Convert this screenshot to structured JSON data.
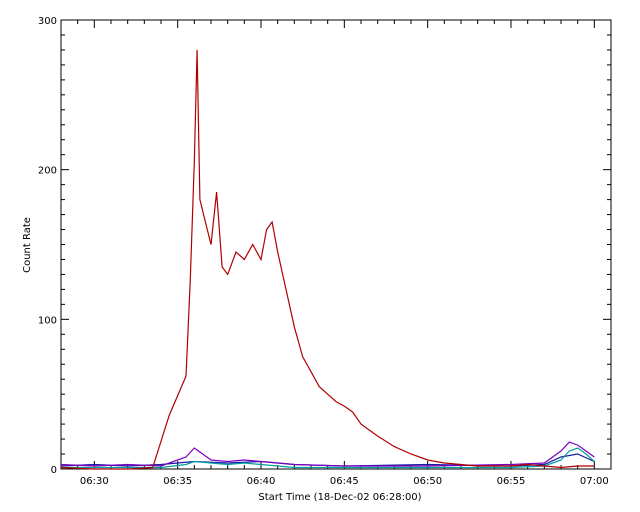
{
  "chart_data": {
    "type": "line",
    "title": "",
    "xlabel": "Start Time (18-Dec-02 06:28:00)",
    "ylabel": "Count Rate",
    "xlim": [
      "06:28",
      "07:01"
    ],
    "ylim": [
      0,
      300
    ],
    "x_ticks": [
      "06:30",
      "06:35",
      "06:40",
      "06:45",
      "06:50",
      "06:55",
      "07:00"
    ],
    "y_ticks": [
      "0",
      "100",
      "200",
      "300"
    ],
    "grid": false,
    "legend": "none",
    "series": [
      {
        "color": "#b00000",
        "x": [
          "06:28",
          "06:30",
          "06:32",
          "06:33:30",
          "06:34:30",
          "06:35:30",
          "06:35:45",
          "06:36:00",
          "06:36:10",
          "06:36:20",
          "06:36:40",
          "06:37:00",
          "06:37:20",
          "06:37:40",
          "06:38:00",
          "06:38:30",
          "06:39:00",
          "06:39:30",
          "06:40:00",
          "06:40:20",
          "06:40:40",
          "06:41:00",
          "06:41:30",
          "06:42:00",
          "06:42:30",
          "06:43:00",
          "06:43:30",
          "06:44:00",
          "06:44:30",
          "06:45:00",
          "06:45:30",
          "06:46:00",
          "06:47:00",
          "06:48:00",
          "06:49:00",
          "06:50:00",
          "06:51:00",
          "06:52:00",
          "06:53:00",
          "06:54:00",
          "06:55:00",
          "06:56:00",
          "06:57:00",
          "06:58:00",
          "06:59:00",
          "07:00:00"
        ],
        "values": [
          1,
          0,
          0,
          1,
          36,
          62,
          125,
          205,
          280,
          180,
          165,
          150,
          185,
          135,
          130,
          145,
          140,
          150,
          140,
          160,
          165,
          145,
          120,
          95,
          75,
          65,
          55,
          50,
          45,
          42,
          38,
          30,
          22,
          15,
          10,
          6,
          4,
          3,
          2,
          2,
          2,
          3,
          2,
          1,
          2,
          2
        ]
      },
      {
        "color": "#7a00c0",
        "x": [
          "06:28",
          "06:30",
          "06:32",
          "06:34",
          "06:35:30",
          "06:36:00",
          "06:36:30",
          "06:37:00",
          "06:38:00",
          "06:39:00",
          "06:40:00",
          "06:41:00",
          "06:42:00",
          "06:45:00",
          "06:50:00",
          "06:55:00",
          "06:57:00",
          "06:58:00",
          "06:58:30",
          "06:59:00",
          "06:59:30",
          "07:00:00"
        ],
        "values": [
          3,
          2,
          3,
          2,
          8,
          14,
          10,
          6,
          5,
          6,
          5,
          4,
          3,
          2,
          2,
          3,
          4,
          12,
          18,
          16,
          12,
          8
        ]
      },
      {
        "color": "#00a0a0",
        "x": [
          "06:28",
          "06:30",
          "06:32",
          "06:34",
          "06:35:30",
          "06:36:00",
          "06:37:00",
          "06:38:00",
          "06:39:00",
          "06:40:00",
          "06:41:00",
          "06:42:00",
          "06:45:00",
          "06:50:00",
          "06:55:00",
          "06:57:00",
          "06:58:00",
          "06:58:30",
          "06:59:00",
          "06:59:30",
          "07:00:00"
        ],
        "values": [
          1,
          1,
          1,
          1,
          3,
          5,
          4,
          3,
          4,
          3,
          2,
          1,
          1,
          1,
          1,
          2,
          6,
          12,
          14,
          10,
          5
        ]
      },
      {
        "color": "#1a1aa0",
        "x": [
          "06:28",
          "06:30",
          "06:32",
          "06:34",
          "06:36:00",
          "06:38:00",
          "06:40:00",
          "06:42:00",
          "06:45:00",
          "06:50:00",
          "06:55:00",
          "06:57:00",
          "06:58:00",
          "06:59:00",
          "07:00:00"
        ],
        "values": [
          2,
          3,
          2,
          3,
          5,
          4,
          5,
          3,
          2,
          3,
          2,
          3,
          8,
          10,
          5
        ]
      }
    ]
  }
}
